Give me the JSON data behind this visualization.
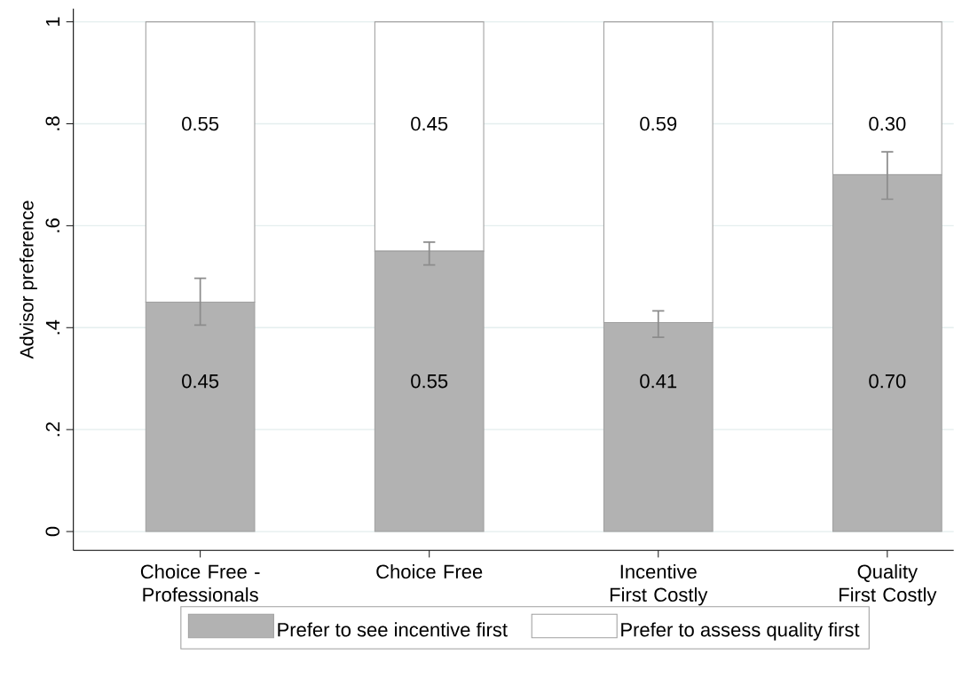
{
  "chart_data": {
    "type": "bar",
    "stacked": true,
    "ylabel": "Advisor preference",
    "categories": [
      "Choice Free - Professionals",
      "Choice Free",
      "Incentive First Costly",
      "Quality First Costly"
    ],
    "series": [
      {
        "name": "Prefer to see incentive first",
        "color": "#b2b2b2",
        "values": [
          0.45,
          0.55,
          0.41,
          0.7
        ],
        "value_labels": [
          "0.45",
          "0.55",
          "0.41",
          "0.70"
        ],
        "errors": [
          [
            0.405,
            0.497
          ],
          [
            0.523,
            0.568
          ],
          [
            0.381,
            0.433
          ],
          [
            0.652,
            0.745
          ]
        ]
      },
      {
        "name": "Prefer to assess quality first",
        "color": "#ffffff",
        "values": [
          0.55,
          0.45,
          0.59,
          0.3
        ],
        "value_labels": [
          "0.55",
          "0.45",
          "0.59",
          "0.30"
        ]
      }
    ],
    "ylim": [
      -0.037,
      1.026
    ],
    "yticks": [
      0,
      {
        "value": 0.2,
        "label": ".2"
      },
      {
        "value": 0.4,
        "label": ".4"
      },
      {
        "value": 0.6,
        "label": ".6"
      },
      {
        "value": 0.8,
        "label": ".8"
      },
      1
    ],
    "grid": "y",
    "legend": "bottom"
  }
}
